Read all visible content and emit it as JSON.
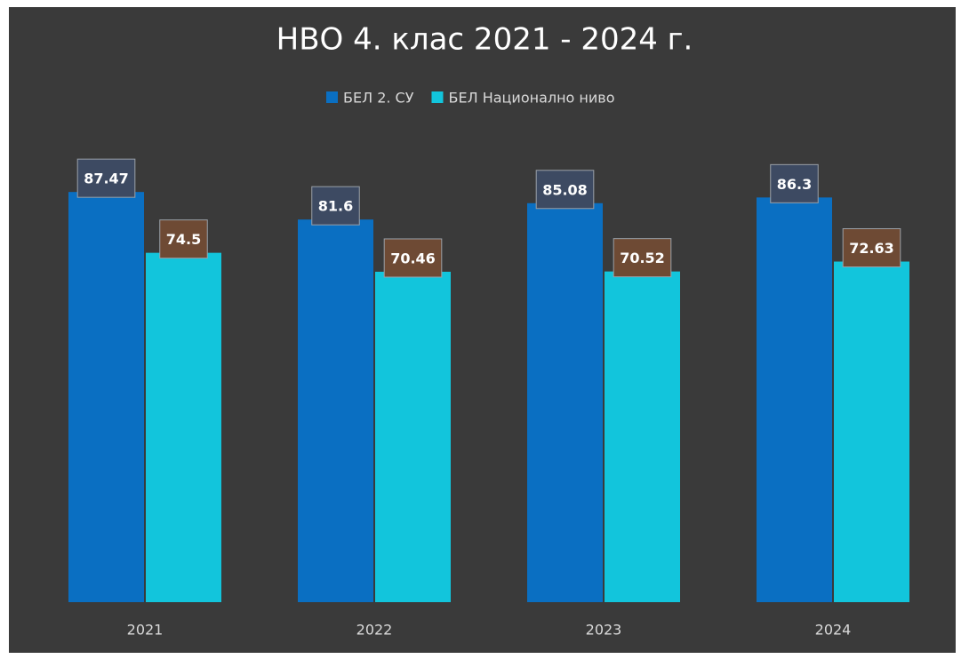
{
  "chart_data": {
    "type": "bar",
    "title": "НВО 4. клас 2021 - 2024 г.",
    "categories": [
      "2021",
      "2022",
      "2023",
      "2024"
    ],
    "series": [
      {
        "name": "БЕЛ 2. СУ",
        "color": "#0a6fc2",
        "values": [
          87.47,
          81.6,
          85.08,
          86.3
        ]
      },
      {
        "name": "БЕЛ Национално ниво",
        "color": "#12c5dc",
        "values": [
          74.5,
          70.46,
          70.52,
          72.63
        ]
      }
    ],
    "ylim": [
      0,
      100
    ],
    "legend": "top"
  }
}
